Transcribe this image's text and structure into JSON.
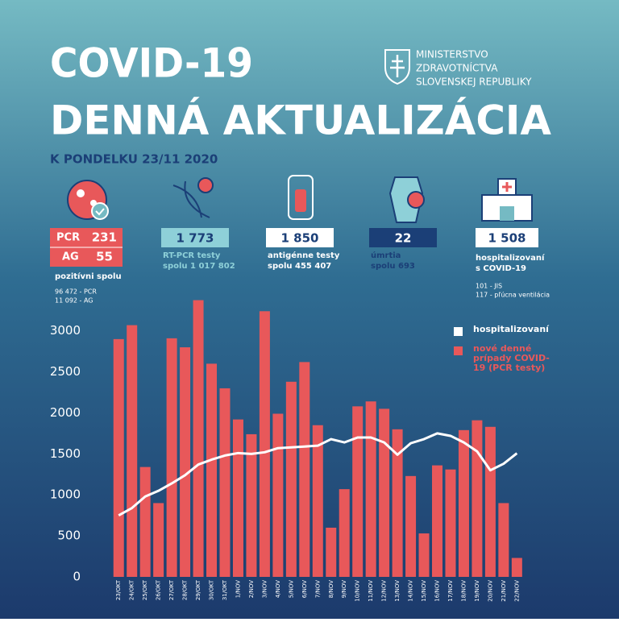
{
  "header": {
    "title_line1": "COVID-19",
    "title_line2": "DENNÁ AKTUALIZÁCIA",
    "date": "K PONDELKU 23/11 2020",
    "ministry": [
      "MINISTERSTVO",
      "ZDRAVOTNÍCTVA",
      "SLOVENSKEJ REPUBLIKY"
    ]
  },
  "stats": {
    "positive": {
      "pcr_label": "PCR",
      "pcr_value": "231",
      "ag_label": "AG",
      "ag_value": "55",
      "caption": "pozitívni spolu",
      "notes": [
        "96 472 - PCR",
        "11 092 - AG"
      ]
    },
    "rt_pcr": {
      "value": "1 773",
      "caption": [
        "RT-PCR testy",
        "spolu 1 017 802"
      ]
    },
    "antigen": {
      "value": "1 850",
      "caption": [
        "antigénne testy",
        "spolu 455 407"
      ]
    },
    "deaths": {
      "value": "22",
      "caption": [
        "úmrtia",
        "spolu 693"
      ]
    },
    "hospital": {
      "value": "1 508",
      "caption": [
        "hospitalizovaní",
        "s COVID-19"
      ],
      "notes": [
        "101 - JIS",
        "117 - pľúcna ventilácia"
      ]
    }
  },
  "chart_data": {
    "type": "bar",
    "categories": [
      "23/OKT",
      "24/OKT",
      "25/OKT",
      "26/OKT",
      "27/OKT",
      "28/OKT",
      "29/OKT",
      "30/OKT",
      "31/OKT",
      "1/NOV",
      "2/NOV",
      "3/NOV",
      "4/NOV",
      "5/NOV",
      "6/NOV",
      "7/NOV",
      "8/NOV",
      "9/NOV",
      "10/NOV",
      "11/NOV",
      "12/NOV",
      "13/NOV",
      "14/NOV",
      "15/NOV",
      "16/NOV",
      "17/NOV",
      "18/NOV",
      "19/NOV",
      "20/NOV",
      "21/NOV",
      "22/NOV"
    ],
    "series": [
      {
        "name": "nové denné prípady COVID-19 (PCR testy)",
        "type": "bar",
        "color": "#e8585a",
        "values": [
          2900,
          3070,
          1340,
          900,
          2910,
          2800,
          3375,
          2600,
          2300,
          1920,
          1740,
          3240,
          1990,
          2380,
          2620,
          1850,
          600,
          1070,
          2080,
          2140,
          2050,
          1800,
          1230,
          530,
          1360,
          1310,
          1790,
          1910,
          1830,
          900,
          231
        ]
      },
      {
        "name": "hospitalizovaní",
        "type": "line",
        "color": "#ffffff",
        "values": [
          750,
          840,
          980,
          1050,
          1140,
          1240,
          1370,
          1430,
          1480,
          1510,
          1500,
          1520,
          1570,
          1580,
          1590,
          1600,
          1680,
          1640,
          1700,
          1700,
          1640,
          1490,
          1630,
          1680,
          1750,
          1720,
          1640,
          1530,
          1300,
          1380,
          1508
        ]
      }
    ],
    "ylim": [
      0,
      3400
    ],
    "yticks": [
      0,
      500,
      1000,
      1500,
      2000,
      2500,
      3000
    ],
    "legend": "top-right"
  }
}
